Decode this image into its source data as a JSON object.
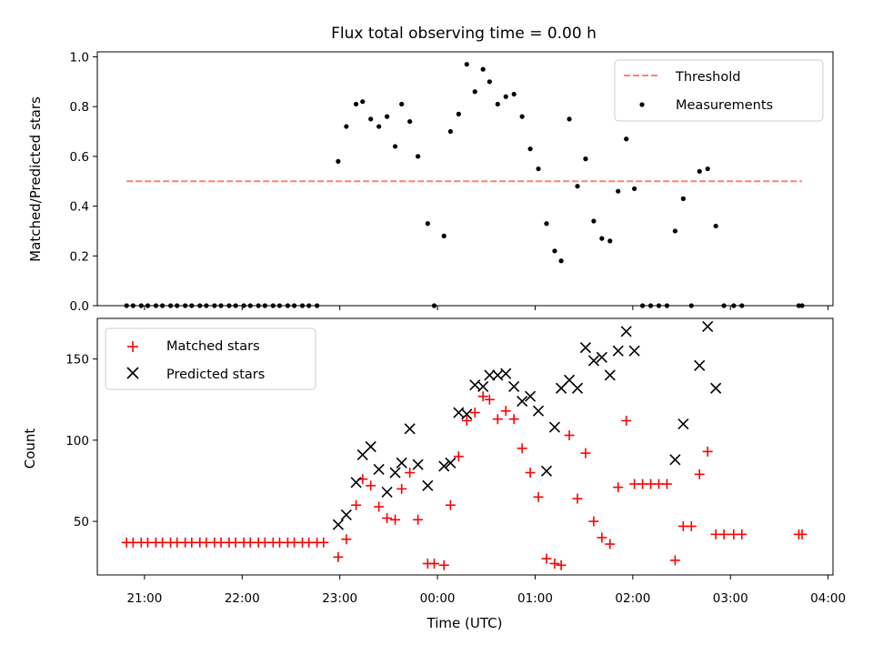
{
  "figure": {
    "title": "Flux total observing time = 0.00 h",
    "xlabel": "Time (UTC)"
  },
  "colors": {
    "threshold": "#ff7f7f",
    "measurements": "#000000",
    "matched": "#ff0000",
    "predicted": "#000000"
  },
  "chart_data": [
    {
      "type": "scatter",
      "title": "Flux total observing time = 0.00 h",
      "xlabel": "",
      "ylabel": "Matched/Predicted stars",
      "x_unit": "hours UTC (relative to 00:00)",
      "xlim": [
        "20:31",
        "04:03"
      ],
      "ylim": [
        0,
        1.02
      ],
      "yticks": [
        "0.0",
        "0.2",
        "0.4",
        "0.6",
        "0.8",
        "1.0"
      ],
      "legend": {
        "position": "top-right",
        "entries": [
          "Threshold",
          "Measurements"
        ]
      },
      "threshold": {
        "name": "Threshold",
        "y": 0.5,
        "x_start": "20:49",
        "x_end": "03:44"
      },
      "series": [
        {
          "name": "Measurements",
          "points": [
            [
              "20:49",
              0
            ],
            [
              "20:53",
              0
            ],
            [
              "20:58",
              0
            ],
            [
              "21:02",
              0
            ],
            [
              "21:07",
              0
            ],
            [
              "21:11",
              0
            ],
            [
              "21:16",
              0
            ],
            [
              "21:20",
              0
            ],
            [
              "21:25",
              0
            ],
            [
              "21:29",
              0
            ],
            [
              "21:34",
              0
            ],
            [
              "21:38",
              0
            ],
            [
              "21:43",
              0
            ],
            [
              "21:47",
              0
            ],
            [
              "21:52",
              0
            ],
            [
              "21:56",
              0
            ],
            [
              "22:01",
              0
            ],
            [
              "22:05",
              0
            ],
            [
              "22:10",
              0
            ],
            [
              "22:14",
              0
            ],
            [
              "22:19",
              0
            ],
            [
              "22:23",
              0
            ],
            [
              "22:28",
              0
            ],
            [
              "22:32",
              0
            ],
            [
              "22:37",
              0
            ],
            [
              "22:41",
              0
            ],
            [
              "22:46",
              0
            ],
            [
              "22:59",
              0.58
            ],
            [
              "23:04",
              0.72
            ],
            [
              "23:10",
              0.81
            ],
            [
              "23:14",
              0.82
            ],
            [
              "23:19",
              0.75
            ],
            [
              "23:24",
              0.72
            ],
            [
              "23:29",
              0.76
            ],
            [
              "23:34",
              0.64
            ],
            [
              "23:38",
              0.81
            ],
            [
              "23:43",
              0.74
            ],
            [
              "23:48",
              0.6
            ],
            [
              "23:54",
              0.33
            ],
            [
              "23:58",
              0
            ],
            [
              "00:04",
              0.28
            ],
            [
              "00:08",
              0.7
            ],
            [
              "00:13",
              0.77
            ],
            [
              "00:18",
              0.97
            ],
            [
              "00:23",
              0.86
            ],
            [
              "00:28",
              0.95
            ],
            [
              "00:32",
              0.9
            ],
            [
              "00:37",
              0.81
            ],
            [
              "00:42",
              0.84
            ],
            [
              "00:47",
              0.85
            ],
            [
              "00:52",
              0.76
            ],
            [
              "00:57",
              0.63
            ],
            [
              "01:02",
              0.55
            ],
            [
              "01:07",
              0.33
            ],
            [
              "01:12",
              0.22
            ],
            [
              "01:16",
              0.18
            ],
            [
              "01:21",
              0.75
            ],
            [
              "01:26",
              0.48
            ],
            [
              "01:31",
              0.59
            ],
            [
              "01:36",
              0.34
            ],
            [
              "01:41",
              0.27
            ],
            [
              "01:46",
              0.26
            ],
            [
              "01:51",
              0.46
            ],
            [
              "01:56",
              0.67
            ],
            [
              "02:01",
              0.47
            ],
            [
              "02:06",
              0
            ],
            [
              "02:11",
              0
            ],
            [
              "02:16",
              0
            ],
            [
              "02:21",
              0
            ],
            [
              "02:26",
              0.3
            ],
            [
              "02:31",
              0.43
            ],
            [
              "02:36",
              0
            ],
            [
              "02:41",
              0.54
            ],
            [
              "02:46",
              0.55
            ],
            [
              "02:51",
              0.32
            ],
            [
              "02:56",
              0
            ],
            [
              "03:02",
              0
            ],
            [
              "03:07",
              0
            ],
            [
              "03:42",
              0
            ],
            [
              "03:44",
              0
            ]
          ]
        }
      ]
    },
    {
      "type": "scatter",
      "title": "",
      "xlabel": "Time (UTC)",
      "ylabel": "Count",
      "xlim": [
        "20:31",
        "04:03"
      ],
      "ylim": [
        17,
        175
      ],
      "xticks": [
        "21:00",
        "22:00",
        "23:00",
        "00:00",
        "01:00",
        "02:00",
        "03:00",
        "04:00"
      ],
      "yticks": [
        "50",
        "100",
        "150"
      ],
      "legend": {
        "position": "top-left",
        "entries": [
          "Matched stars",
          "Predicted stars"
        ]
      },
      "series": [
        {
          "name": "Matched stars",
          "marker": "+",
          "points": [
            [
              "20:49",
              37
            ],
            [
              "20:53",
              37
            ],
            [
              "20:58",
              37
            ],
            [
              "21:02",
              37
            ],
            [
              "21:07",
              37
            ],
            [
              "21:11",
              37
            ],
            [
              "21:16",
              37
            ],
            [
              "21:20",
              37
            ],
            [
              "21:25",
              37
            ],
            [
              "21:29",
              37
            ],
            [
              "21:34",
              37
            ],
            [
              "21:38",
              37
            ],
            [
              "21:43",
              37
            ],
            [
              "21:47",
              37
            ],
            [
              "21:52",
              37
            ],
            [
              "21:56",
              37
            ],
            [
              "22:01",
              37
            ],
            [
              "22:05",
              37
            ],
            [
              "22:10",
              37
            ],
            [
              "22:14",
              37
            ],
            [
              "22:19",
              37
            ],
            [
              "22:23",
              37
            ],
            [
              "22:28",
              37
            ],
            [
              "22:32",
              37
            ],
            [
              "22:37",
              37
            ],
            [
              "22:41",
              37
            ],
            [
              "22:46",
              37
            ],
            [
              "22:50",
              37
            ],
            [
              "22:59",
              28
            ],
            [
              "23:04",
              39
            ],
            [
              "23:10",
              60
            ],
            [
              "23:14",
              76
            ],
            [
              "23:19",
              72
            ],
            [
              "23:24",
              59
            ],
            [
              "23:29",
              52
            ],
            [
              "23:34",
              51
            ],
            [
              "23:38",
              70
            ],
            [
              "23:43",
              80
            ],
            [
              "23:48",
              51
            ],
            [
              "23:54",
              24
            ],
            [
              "23:58",
              24
            ],
            [
              "00:04",
              23
            ],
            [
              "00:08",
              60
            ],
            [
              "00:13",
              90
            ],
            [
              "00:18",
              112
            ],
            [
              "00:23",
              117
            ],
            [
              "00:28",
              127
            ],
            [
              "00:32",
              125
            ],
            [
              "00:37",
              113
            ],
            [
              "00:42",
              118
            ],
            [
              "00:47",
              113
            ],
            [
              "00:52",
              95
            ],
            [
              "00:57",
              80
            ],
            [
              "01:02",
              65
            ],
            [
              "01:07",
              27
            ],
            [
              "01:12",
              24
            ],
            [
              "01:16",
              23
            ],
            [
              "01:21",
              103
            ],
            [
              "01:26",
              64
            ],
            [
              "01:31",
              92
            ],
            [
              "01:36",
              50
            ],
            [
              "01:41",
              40
            ],
            [
              "01:46",
              36
            ],
            [
              "01:51",
              71
            ],
            [
              "01:56",
              112
            ],
            [
              "02:01",
              73
            ],
            [
              "02:06",
              73
            ],
            [
              "02:11",
              73
            ],
            [
              "02:16",
              73
            ],
            [
              "02:21",
              73
            ],
            [
              "02:26",
              26
            ],
            [
              "02:31",
              47
            ],
            [
              "02:36",
              47
            ],
            [
              "02:41",
              79
            ],
            [
              "02:46",
              93
            ],
            [
              "02:51",
              42
            ],
            [
              "02:56",
              42
            ],
            [
              "03:02",
              42
            ],
            [
              "03:07",
              42
            ],
            [
              "03:42",
              42
            ],
            [
              "03:44",
              42
            ]
          ]
        },
        {
          "name": "Predicted stars",
          "marker": "x",
          "points": [
            [
              "22:59",
              48
            ],
            [
              "23:04",
              54
            ],
            [
              "23:10",
              74
            ],
            [
              "23:14",
              91
            ],
            [
              "23:19",
              96
            ],
            [
              "23:24",
              82
            ],
            [
              "23:29",
              68
            ],
            [
              "23:34",
              80
            ],
            [
              "23:38",
              86
            ],
            [
              "23:43",
              107
            ],
            [
              "23:48",
              85
            ],
            [
              "23:54",
              72
            ],
            [
              "00:04",
              84
            ],
            [
              "00:08",
              86
            ],
            [
              "00:13",
              117
            ],
            [
              "00:18",
              116
            ],
            [
              "00:23",
              134
            ],
            [
              "00:28",
              133
            ],
            [
              "00:32",
              140
            ],
            [
              "00:37",
              140
            ],
            [
              "00:42",
              141
            ],
            [
              "00:47",
              133
            ],
            [
              "00:52",
              124
            ],
            [
              "00:57",
              127
            ],
            [
              "01:02",
              118
            ],
            [
              "01:07",
              81
            ],
            [
              "01:12",
              108
            ],
            [
              "01:16",
              132
            ],
            [
              "01:21",
              137
            ],
            [
              "01:26",
              132
            ],
            [
              "01:31",
              157
            ],
            [
              "01:36",
              149
            ],
            [
              "01:41",
              151
            ],
            [
              "01:46",
              140
            ],
            [
              "01:51",
              155
            ],
            [
              "01:56",
              167
            ],
            [
              "02:01",
              155
            ],
            [
              "02:26",
              88
            ],
            [
              "02:31",
              110
            ],
            [
              "02:41",
              146
            ],
            [
              "02:46",
              170
            ],
            [
              "02:51",
              132
            ]
          ]
        }
      ]
    }
  ]
}
